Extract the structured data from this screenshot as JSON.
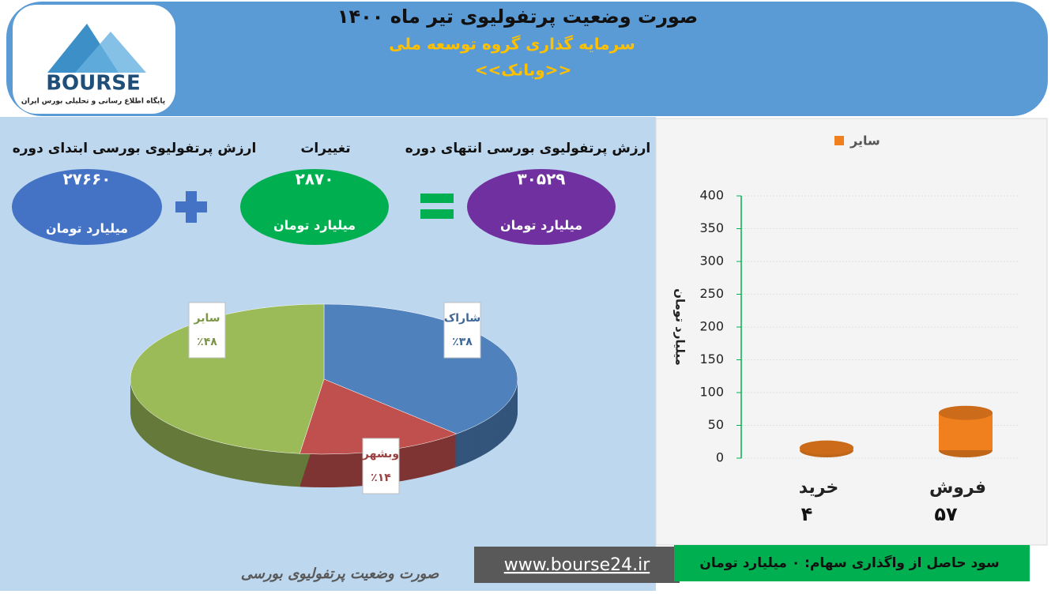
{
  "header": {
    "title": "صورت وضعیت پرتفولیوی تیر ماه ۱۴۰۰",
    "subtitle": "سرمایه گذاری گروه توسعه ملی",
    "symbol": "<<وبانک>>"
  },
  "logo": {
    "brand": "BOURSE",
    "tagline": "پایگاه اطلاع رسانی و تحلیلی بورس ایران"
  },
  "summary": {
    "start": {
      "label": "ارزش پرتفولیوی بورسی ابتدای دوره",
      "value": "۲۷۶۶۰",
      "unit": "میلیارد تومان"
    },
    "change": {
      "label": "تغییرات",
      "value": "۲۸۷۰",
      "unit": "میلیارد تومان"
    },
    "end": {
      "label": "ارزش پرتفولیوی بورسی انتهای دوره",
      "value": "۳۰۵۲۹",
      "unit": "میلیارد تومان"
    }
  },
  "chart_data": [
    {
      "type": "pie",
      "categories": [
        "شاراک",
        "وبشهر",
        "سایر"
      ],
      "values": [
        38,
        14,
        48
      ],
      "value_labels": [
        "٪۳۸",
        "٪۱۴",
        "٪۴۸"
      ],
      "colors": [
        "#4f81bd",
        "#c0504d",
        "#9bbb59"
      ]
    },
    {
      "type": "bar",
      "y_label": "میلیارد تومان",
      "categories": [
        "خرید",
        "فروش"
      ],
      "series": [
        {
          "name": "سایر",
          "color": "#f07f1e",
          "values": [
            4,
            57
          ],
          "value_labels": [
            "۴",
            "۵۷"
          ]
        }
      ],
      "ylim": [
        0,
        400
      ],
      "yticks": [
        0,
        50,
        100,
        150,
        200,
        250,
        300,
        350,
        400
      ],
      "legend": "top"
    }
  ],
  "footer": {
    "caption": "صورت وضعیت پرتفولیوی بورسی",
    "website": "www.bourse24.ir",
    "profit": "سود حاصل از واگذاری سهام: ۰ میلیارد تومان"
  }
}
